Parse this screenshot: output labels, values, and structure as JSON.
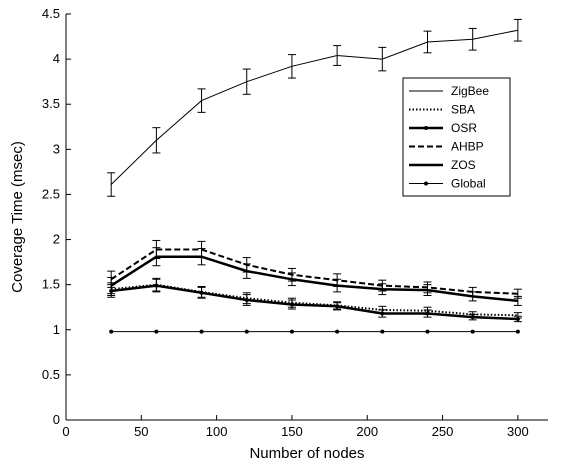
{
  "chart_data": {
    "type": "line",
    "title": "",
    "xlabel": "Number of nodes",
    "ylabel": "Coverage Time (msec)",
    "xlim": [
      0,
      320
    ],
    "ylim": [
      0,
      4.5
    ],
    "x_ticks": [
      "0",
      "50",
      "100",
      "150",
      "200",
      "250",
      "300"
    ],
    "y_ticks": [
      "0",
      "0.5",
      "1",
      "1.5",
      "2",
      "2.5",
      "3",
      "3.5",
      "4",
      "4.5"
    ],
    "grid": false,
    "legend_position": "upper-right",
    "x": [
      30,
      60,
      90,
      120,
      150,
      180,
      210,
      240,
      270,
      300
    ],
    "series": [
      {
        "name": "ZigBee",
        "style": "thin-solid",
        "values": [
          2.61,
          3.1,
          3.54,
          3.75,
          3.92,
          4.04,
          4.0,
          4.19,
          4.22,
          4.32
        ],
        "errors": [
          0.13,
          0.14,
          0.13,
          0.14,
          0.13,
          0.11,
          0.13,
          0.12,
          0.12,
          0.12
        ]
      },
      {
        "name": "SBA",
        "style": "dotted",
        "values": [
          1.45,
          1.5,
          1.42,
          1.35,
          1.3,
          1.27,
          1.22,
          1.21,
          1.17,
          1.16
        ],
        "errors": [
          0.07,
          0.07,
          0.06,
          0.06,
          0.05,
          0.04,
          0.04,
          0.04,
          0.03,
          0.03
        ]
      },
      {
        "name": "OSR",
        "style": "bold-solid-marker",
        "values": [
          1.43,
          1.49,
          1.41,
          1.33,
          1.28,
          1.26,
          1.18,
          1.18,
          1.14,
          1.12
        ],
        "errors": [
          0.07,
          0.07,
          0.06,
          0.06,
          0.05,
          0.04,
          0.04,
          0.04,
          0.03,
          0.03
        ]
      },
      {
        "name": "AHBP",
        "style": "dashed",
        "values": [
          1.56,
          1.89,
          1.89,
          1.72,
          1.61,
          1.55,
          1.49,
          1.47,
          1.42,
          1.4
        ],
        "errors": [
          0.09,
          0.1,
          0.09,
          0.08,
          0.07,
          0.07,
          0.06,
          0.06,
          0.05,
          0.05
        ]
      },
      {
        "name": "ZOS",
        "style": "bold-solid",
        "values": [
          1.49,
          1.81,
          1.81,
          1.65,
          1.56,
          1.49,
          1.45,
          1.44,
          1.37,
          1.32
        ],
        "errors": [
          0.09,
          0.1,
          0.09,
          0.08,
          0.07,
          0.07,
          0.06,
          0.06,
          0.05,
          0.05
        ]
      },
      {
        "name": "Global",
        "style": "thin-solid-dot",
        "values": [
          0.98,
          0.98,
          0.98,
          0.98,
          0.98,
          0.98,
          0.98,
          0.98,
          0.98,
          0.98
        ],
        "errors": []
      }
    ]
  }
}
